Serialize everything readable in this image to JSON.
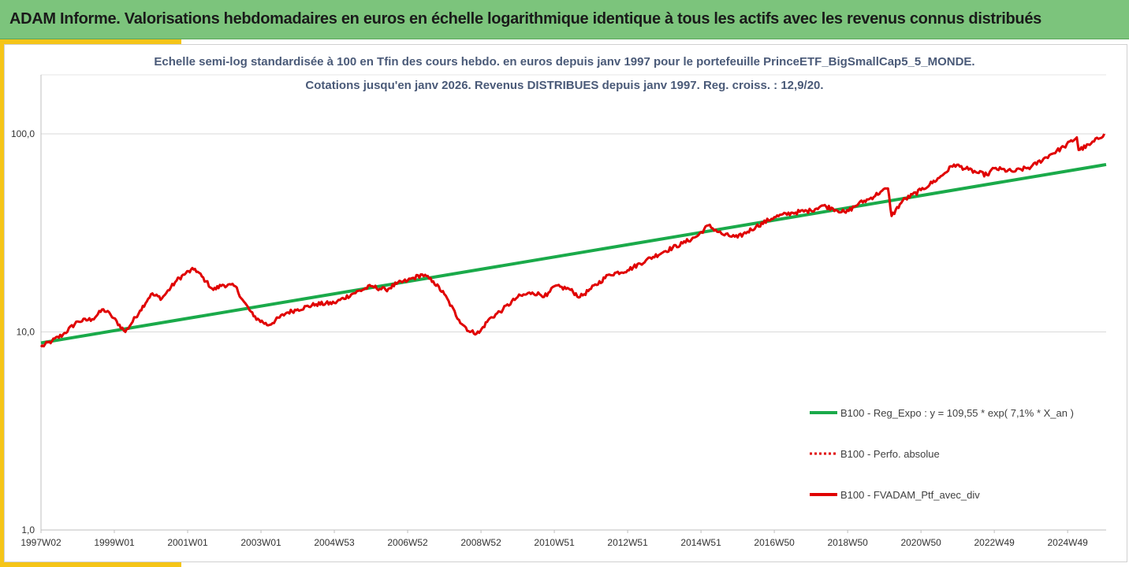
{
  "header": {
    "title": "ADAM Informe. Valorisations hebdomadaires en euros en échelle logarithmique identique à tous les actifs avec les revenus connus distribués"
  },
  "colors": {
    "banner": "#7cc47c",
    "accent": "#f5c518",
    "reg_line": "#1aaa4a",
    "ptf_line": "#e00000",
    "subtitle": "#4a5a78"
  },
  "chart_data": {
    "type": "line",
    "title_line1": "Echelle semi-log standardisée  à 100 en Tfin des cours hebdo.  en euros depuis janv 1997 pour le portefeuille PrinceETF_BigSmallCap5_5_MONDE.",
    "title_line2": "Cotations  jusqu'en janv 2026. Revenus DISTRIBUES depuis janv 1997. Reg. croiss. : 12,9/20.",
    "y_scale": "log",
    "ylim": [
      1,
      100
    ],
    "y_ticks": [
      1,
      10,
      100
    ],
    "y_tick_labels": [
      "1,0",
      "10,0",
      "100,0"
    ],
    "xlim": [
      1997.0,
      2026.05
    ],
    "x_ticks": [
      {
        "label": "1997W02",
        "x": 1997.0
      },
      {
        "label": "1999W01",
        "x": 1999.0
      },
      {
        "label": "2001W01",
        "x": 2001.0
      },
      {
        "label": "2003W01",
        "x": 2003.0
      },
      {
        "label": "2004W53",
        "x": 2005.0
      },
      {
        "label": "2006W52",
        "x": 2007.0
      },
      {
        "label": "2008W52",
        "x": 2009.0
      },
      {
        "label": "2010W51",
        "x": 2011.0
      },
      {
        "label": "2012W51",
        "x": 2013.0
      },
      {
        "label": "2014W51",
        "x": 2015.0
      },
      {
        "label": "2016W50",
        "x": 2017.0
      },
      {
        "label": "2018W50",
        "x": 2019.0
      },
      {
        "label": "2020W50",
        "x": 2021.0
      },
      {
        "label": "2022W49",
        "x": 2023.0
      },
      {
        "label": "2024W49",
        "x": 2025.0
      }
    ],
    "grid": "horizontal",
    "legend_position": "bottom-right",
    "series": [
      {
        "name": "B100 - Reg_Expo : y = 109,55 * exp( 7,1% *  X_an )",
        "style": "solid",
        "color": "#1aaa4a",
        "x": [
          1997.0,
          2026.05
        ],
        "y": [
          8.8,
          70.0
        ]
      },
      {
        "name": "B100 - Perfo. absolue",
        "style": "dotted",
        "color": "#e00000",
        "x": [],
        "y": []
      },
      {
        "name": "B100 - FVADAM_Ptf_avec_div",
        "style": "solid",
        "color": "#e00000",
        "x": [
          1997.0,
          1997.3,
          1997.6,
          1998.0,
          1998.4,
          1998.7,
          1998.9,
          1999.3,
          1999.7,
          2000.0,
          2000.3,
          2000.7,
          2000.95,
          2001.2,
          2001.5,
          2001.7,
          2001.95,
          2002.3,
          2002.5,
          2002.8,
          2002.95,
          2003.2,
          2003.7,
          2004.0,
          2004.5,
          2005.0,
          2005.5,
          2006.0,
          2006.4,
          2006.7,
          2007.0,
          2007.4,
          2007.7,
          2008.0,
          2008.4,
          2008.7,
          2008.95,
          2009.2,
          2009.6,
          2010.0,
          2010.4,
          2010.8,
          2011.0,
          2011.4,
          2011.7,
          2012.0,
          2012.5,
          2013.0,
          2013.5,
          2014.0,
          2014.5,
          2014.9,
          2015.2,
          2015.6,
          2016.0,
          2016.5,
          2017.0,
          2017.5,
          2018.0,
          2018.3,
          2018.6,
          2018.95,
          2019.3,
          2019.6,
          2019.9,
          2020.1,
          2020.2,
          2020.5,
          2021.0,
          2021.5,
          2021.9,
          2022.3,
          2022.5,
          2022.8,
          2023.0,
          2023.5,
          2024.0,
          2024.5,
          2024.9,
          2025.25,
          2025.3,
          2025.6,
          2026.0
        ],
        "y": [
          8.4,
          9.0,
          9.7,
          11.3,
          11.6,
          13.0,
          12.2,
          10.0,
          12.8,
          15.5,
          14.8,
          18.2,
          19.8,
          20.8,
          18.0,
          16.3,
          17.3,
          17.0,
          14.5,
          12.0,
          11.5,
          10.8,
          12.5,
          13.0,
          13.8,
          14.0,
          15.6,
          17.0,
          16.3,
          17.5,
          18.2,
          19.5,
          18.0,
          15.5,
          11.5,
          10.0,
          9.9,
          11.5,
          13.0,
          15.0,
          15.8,
          15.2,
          17.0,
          16.5,
          15.0,
          16.5,
          19.5,
          20.5,
          23.0,
          25.5,
          28.0,
          30.5,
          34.5,
          31.0,
          30.0,
          34.0,
          38.0,
          40.0,
          41.0,
          43.5,
          42.0,
          40.0,
          44.5,
          47.0,
          51.0,
          53.0,
          38.5,
          46.0,
          52.0,
          60.0,
          70.0,
          66.0,
          64.0,
          62.0,
          67.0,
          64.5,
          68.0,
          78.0,
          86.0,
          96.0,
          83.0,
          88.0,
          100.0
        ]
      }
    ]
  }
}
